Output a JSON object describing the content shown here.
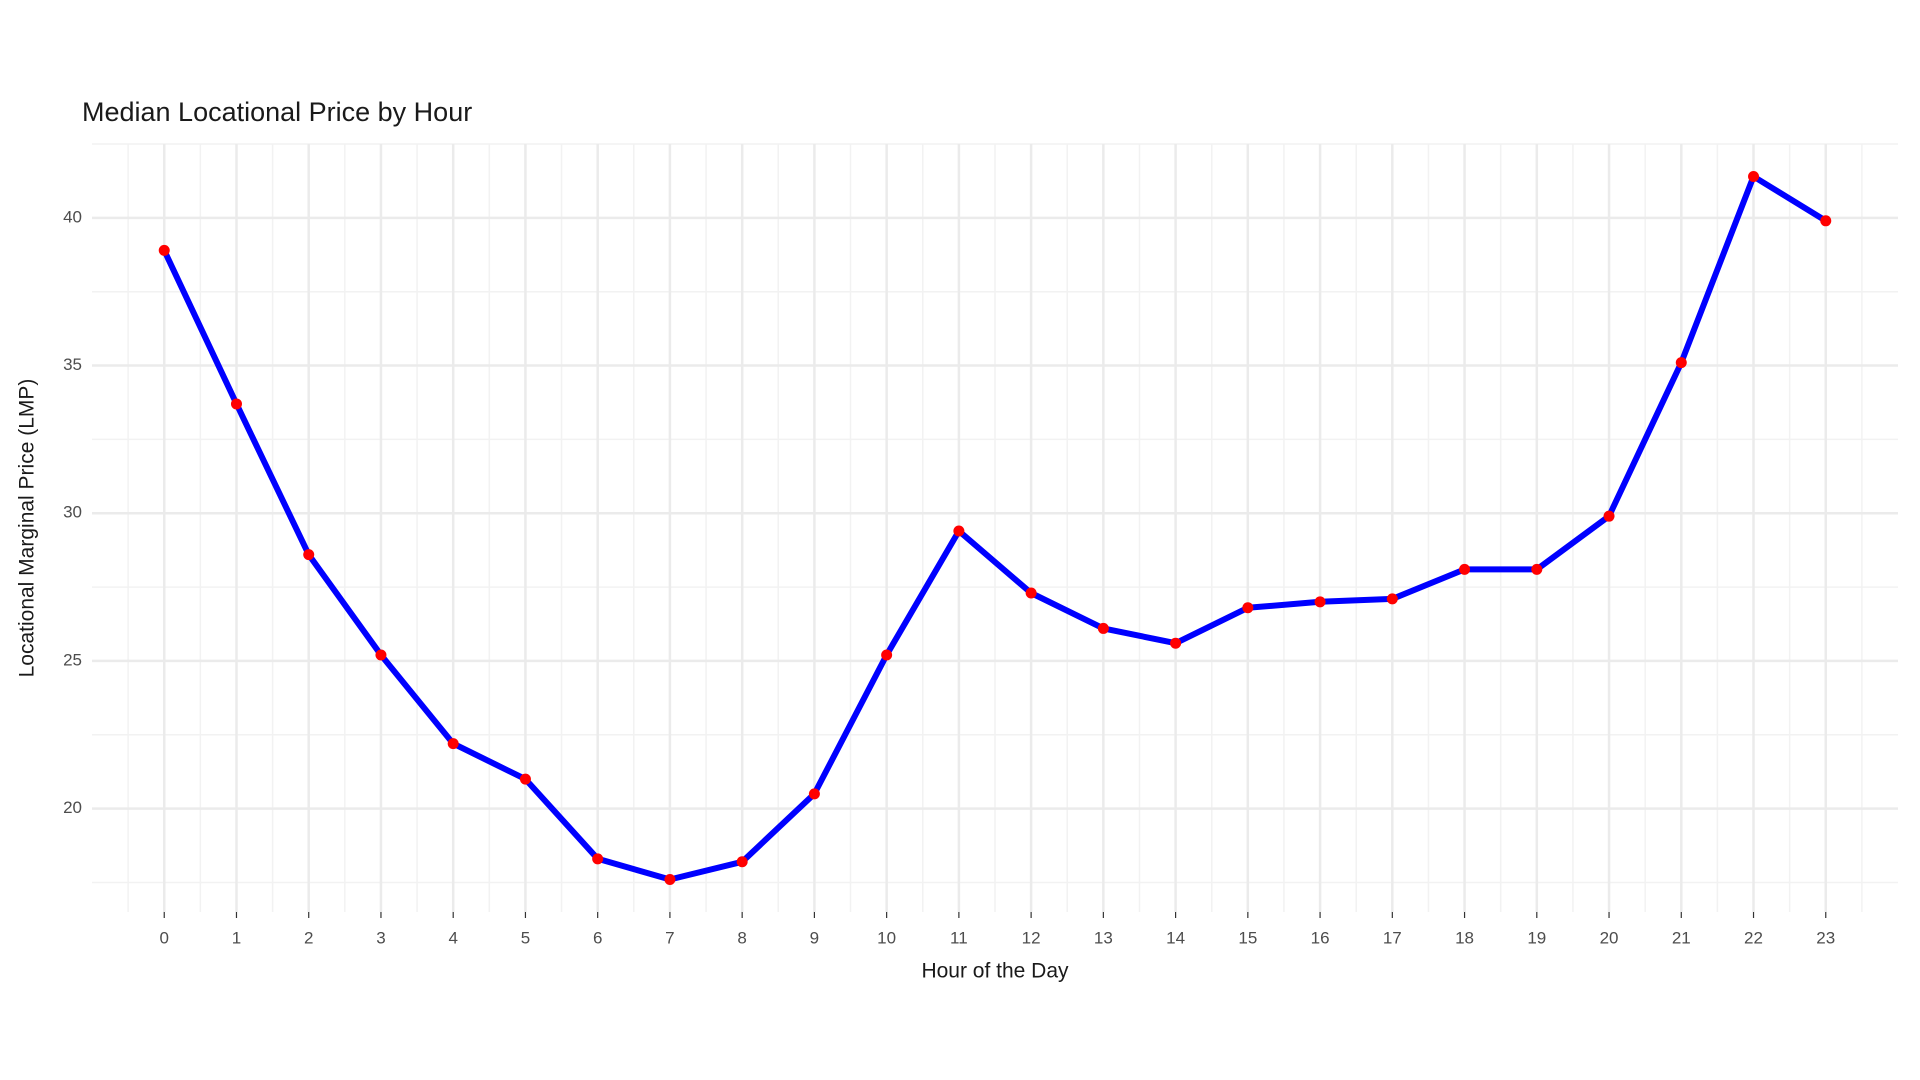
{
  "chart_data": {
    "type": "line",
    "title": "Median Locational Price by Hour",
    "x_label": "Hour of the Day",
    "y_label": "Locational Marginal Price (LMP)",
    "x": [
      0,
      1,
      2,
      3,
      4,
      5,
      6,
      7,
      8,
      9,
      10,
      11,
      12,
      13,
      14,
      15,
      16,
      17,
      18,
      19,
      20,
      21,
      22,
      23
    ],
    "series": [
      {
        "line_color": "#0000ff",
        "point_color": "#ff0000",
        "values": [
          38.9,
          33.7,
          28.6,
          25.2,
          22.2,
          21.0,
          18.3,
          17.6,
          18.2,
          20.5,
          25.2,
          29.4,
          27.3,
          26.1,
          25.6,
          26.8,
          27.0,
          27.1,
          28.1,
          28.1,
          29.9,
          35.1,
          41.4,
          39.9
        ]
      }
    ],
    "xlim": [
      -1,
      24
    ],
    "ylim": [
      16.5,
      42.5
    ],
    "xticks": [
      0,
      1,
      2,
      3,
      4,
      5,
      6,
      7,
      8,
      9,
      10,
      11,
      12,
      13,
      14,
      15,
      16,
      17,
      18,
      19,
      20,
      21,
      22,
      23
    ],
    "yticks": [
      20,
      25,
      30,
      35,
      40
    ],
    "grid": true
  }
}
